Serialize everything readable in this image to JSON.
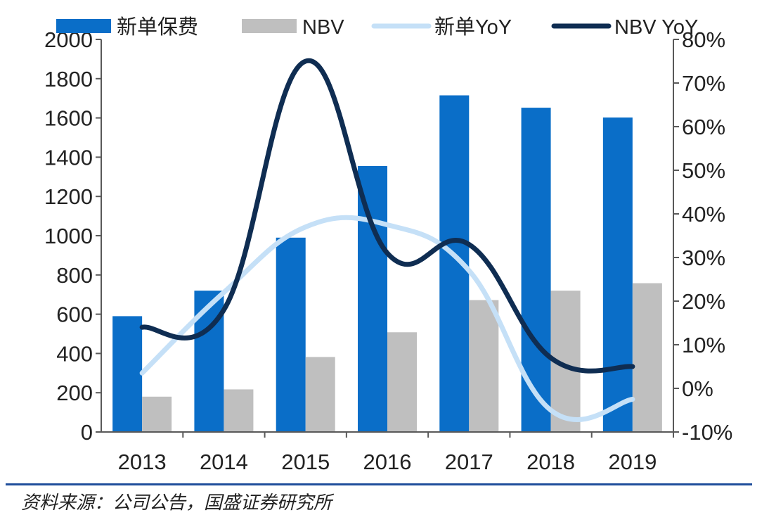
{
  "colors": {
    "new_premium": "#0a6ec8",
    "nbv": "#bfbfbf",
    "new_yoy": "#c5e0f7",
    "nbv_yoy": "#0f2d52",
    "axis": "#595959",
    "source_rule": "#1f4e9b"
  },
  "chart_data": {
    "type": "bar",
    "categories": [
      "2013",
      "2014",
      "2015",
      "2016",
      "2017",
      "2018",
      "2019"
    ],
    "series": [
      {
        "name": "新单保费",
        "kind": "bar",
        "axis": "left",
        "color": "#0a6ec8",
        "values": [
          590,
          720,
          990,
          1355,
          1715,
          1652,
          1602
        ]
      },
      {
        "name": "NBV",
        "kind": "bar",
        "axis": "left",
        "color": "#bfbfbf",
        "values": [
          180,
          217,
          382,
          508,
          672,
          720,
          758
        ]
      },
      {
        "name": "新单YoY",
        "kind": "line",
        "axis": "right",
        "color": "#c5e0f7",
        "values": [
          3.5,
          22,
          37,
          37.5,
          27,
          -5,
          -2.5
        ]
      },
      {
        "name": "NBV YoY",
        "kind": "line",
        "axis": "right",
        "color": "#0f2d52",
        "values": [
          14,
          18,
          75,
          31,
          33,
          7,
          5
        ]
      }
    ],
    "y_left": {
      "min": 0,
      "max": 2000,
      "step": 200,
      "ticks": [
        "0",
        "200",
        "400",
        "600",
        "800",
        "1000",
        "1200",
        "1400",
        "1600",
        "1800",
        "2000"
      ]
    },
    "y_right": {
      "min": -10,
      "max": 80,
      "step": 10,
      "ticks": [
        "-10%",
        "0%",
        "10%",
        "20%",
        "30%",
        "40%",
        "50%",
        "60%",
        "70%",
        "80%"
      ]
    },
    "grid": false,
    "legend_position": "top"
  },
  "source_note": "资料来源：公司公告，国盛证券研究所"
}
